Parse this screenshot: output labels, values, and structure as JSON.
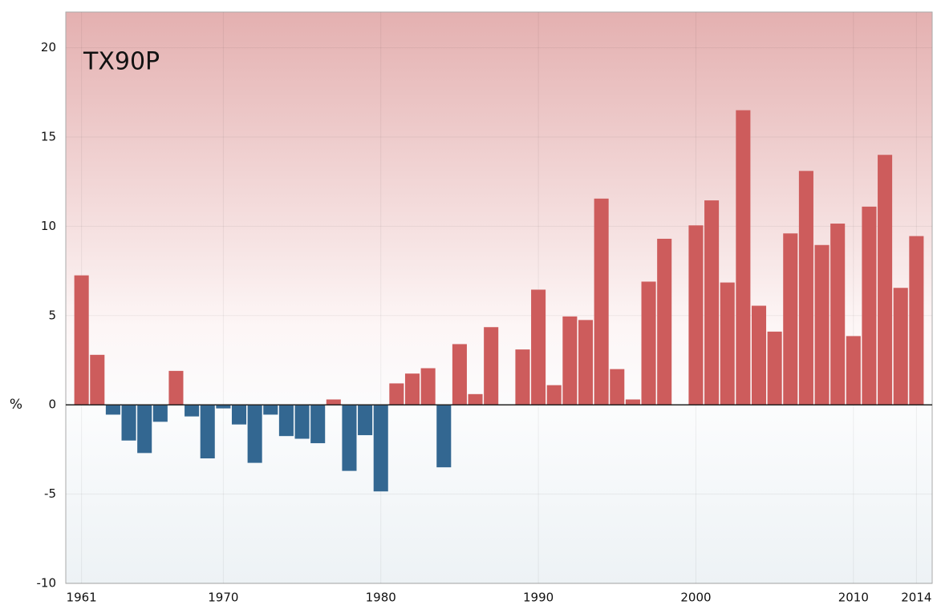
{
  "chart_data": {
    "type": "bar",
    "annotation": "TX90P",
    "y_label": "%",
    "x": [
      1961,
      1962,
      1963,
      1964,
      1965,
      1966,
      1967,
      1968,
      1969,
      1970,
      1971,
      1972,
      1973,
      1974,
      1975,
      1976,
      1977,
      1978,
      1979,
      1980,
      1981,
      1982,
      1983,
      1984,
      1985,
      1986,
      1987,
      1988,
      1989,
      1990,
      1991,
      1992,
      1993,
      1994,
      1995,
      1996,
      1997,
      1998,
      1999,
      2000,
      2001,
      2002,
      2003,
      2004,
      2005,
      2006,
      2007,
      2008,
      2009,
      2010,
      2011,
      2012,
      2013,
      2014
    ],
    "values": [
      7.25,
      2.8,
      -0.55,
      -2.0,
      -2.7,
      -0.95,
      1.9,
      -0.65,
      -3.0,
      -0.2,
      -1.1,
      -3.25,
      -0.55,
      -1.75,
      -1.9,
      -2.15,
      0.3,
      -3.7,
      -1.7,
      -4.85,
      1.2,
      1.75,
      2.05,
      -3.5,
      3.4,
      0.6,
      4.35,
      null,
      3.1,
      6.45,
      1.1,
      4.95,
      4.75,
      11.55,
      2.0,
      0.3,
      6.9,
      9.3,
      null,
      10.05,
      11.45,
      6.85,
      16.5,
      5.55,
      4.1,
      9.6,
      13.1,
      8.95,
      10.15,
      3.85,
      11.1,
      14.0,
      6.55,
      9.45
    ],
    "positive_color": "#cd5c5c",
    "negative_color": "#336791",
    "xlim": [
      1960,
      2015
    ],
    "ylim": [
      -10,
      22
    ],
    "xticks": [
      1961,
      1970,
      1980,
      1990,
      2000,
      2010,
      2014
    ],
    "yticks": [
      -10,
      -5,
      0,
      5,
      10,
      15,
      20
    ],
    "grid": true
  }
}
